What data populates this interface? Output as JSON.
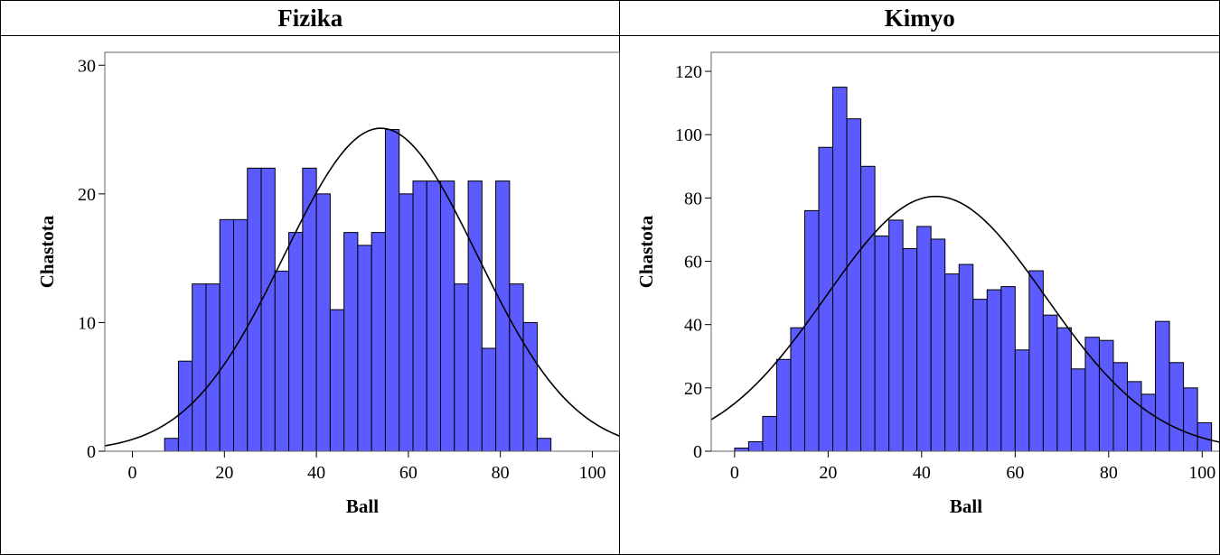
{
  "chart_data": [
    {
      "type": "bar",
      "title": "Fizika",
      "xlabel": "Ball",
      "ylabel": "Chastota",
      "xlim": [
        -6,
        106
      ],
      "ylim": [
        0,
        31
      ],
      "xticks": [
        0,
        20,
        40,
        60,
        80,
        100
      ],
      "yticks": [
        0,
        10,
        20,
        30
      ],
      "bin_width": 3.0,
      "bar_color": "#5b5bff",
      "x": [
        8.5,
        11.5,
        14.5,
        17.5,
        20.5,
        23.5,
        26.5,
        29.5,
        32.5,
        35.5,
        38.5,
        41.5,
        44.5,
        47.5,
        50.5,
        53.5,
        56.5,
        59.5,
        62.5,
        65.5,
        68.5,
        71.5,
        74.5,
        77.5,
        80.5,
        83.5,
        86.5,
        89.5,
        92.5,
        95.5,
        98.5
      ],
      "values": [
        1,
        7,
        13,
        13,
        18,
        18,
        22,
        22,
        14,
        17,
        22,
        20,
        11,
        17,
        16,
        17,
        25,
        20,
        21,
        21,
        21,
        13,
        21,
        8,
        21,
        13,
        10,
        1,
        0,
        0,
        0
      ],
      "normal_curve": {
        "mean": 54.0,
        "sd": 21.0,
        "peak": 25.1
      }
    },
    {
      "type": "bar",
      "title": "Kimyo",
      "xlabel": "Ball",
      "ylabel": "Chastota",
      "xlim": [
        -5,
        104
      ],
      "ylim": [
        0,
        126
      ],
      "xticks": [
        0,
        20,
        40,
        60,
        80,
        100
      ],
      "yticks": [
        0,
        20,
        40,
        60,
        80,
        100,
        120
      ],
      "bin_width": 3.0,
      "bar_color": "#5b5bff",
      "x": [
        1.5,
        4.5,
        7.5,
        10.5,
        13.5,
        16.5,
        19.5,
        22.5,
        25.5,
        28.5,
        31.5,
        34.5,
        37.5,
        40.5,
        43.5,
        46.5,
        49.5,
        52.5,
        55.5,
        58.5,
        61.5,
        64.5,
        67.5,
        70.5,
        73.5,
        76.5,
        79.5,
        82.5,
        85.5,
        88.5,
        91.5,
        94.5,
        97.5,
        100.5
      ],
      "values": [
        1,
        3,
        11,
        29,
        39,
        76,
        96,
        115,
        105,
        90,
        68,
        73,
        64,
        71,
        67,
        56,
        59,
        48,
        51,
        52,
        32,
        57,
        43,
        39,
        26,
        36,
        35,
        28,
        22,
        18,
        41,
        28,
        20,
        9
      ],
      "normal_curve": {
        "mean": 43.0,
        "sd": 23.5,
        "peak": 80.5
      }
    }
  ]
}
